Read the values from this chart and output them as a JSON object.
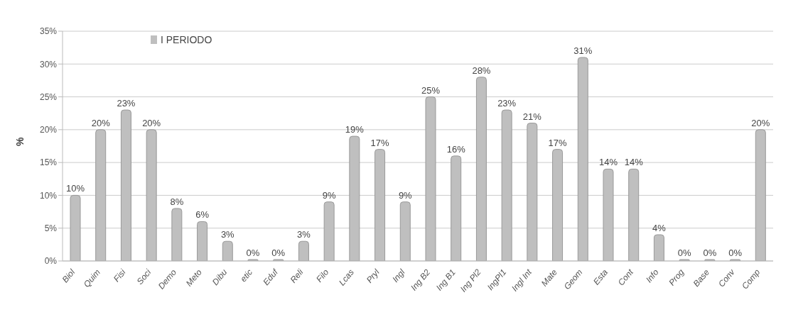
{
  "chart_data": {
    "type": "bar",
    "ylabel": "%",
    "categories": [
      "Biol",
      "Quim",
      "Fisi",
      "Soci",
      "Demo",
      "Meto",
      "Dibu",
      "etic",
      "Eduf",
      "Reli",
      "Filo",
      "Lcas",
      "Pryl",
      "Ingl",
      "Ing B2",
      "Ing B1",
      "Ing Pl2",
      "IngPl1",
      "Ingl Int",
      "Mate",
      "Geom",
      "Esta",
      "Cont",
      "Info",
      "Prog",
      "Base",
      "Conv",
      "Comp"
    ],
    "series": [
      {
        "name": "I PERIODO",
        "color": "#bfbfbf",
        "values": [
          10,
          20,
          23,
          20,
          8,
          6,
          3,
          0,
          0,
          3,
          9,
          19,
          17,
          9,
          25,
          16,
          28,
          23,
          21,
          17,
          31,
          14,
          14,
          4,
          0,
          0,
          0,
          20
        ],
        "value_labels": [
          "10%",
          "20%",
          "23%",
          "20%",
          "8%",
          "6%",
          "3%",
          "0%",
          "0%",
          "3%",
          "9%",
          "19%",
          "17%",
          "9%",
          "25%",
          "16%",
          "28%",
          "23%",
          "21%",
          "17%",
          "31%",
          "14%",
          "14%",
          "4%",
          "0%",
          "0%",
          "0%",
          "20%"
        ]
      }
    ],
    "ylim": [
      0,
      35
    ],
    "yticks": [
      {
        "value": 0,
        "label": "0%"
      },
      {
        "value": 5,
        "label": "5%"
      },
      {
        "value": 10,
        "label": "10%"
      },
      {
        "value": 15,
        "label": "15%"
      },
      {
        "value": 20,
        "label": "20%"
      },
      {
        "value": 25,
        "label": "25%"
      },
      {
        "value": 30,
        "label": "30%"
      },
      {
        "value": 35,
        "label": "35%"
      }
    ],
    "grid": "y",
    "legend": "top"
  }
}
